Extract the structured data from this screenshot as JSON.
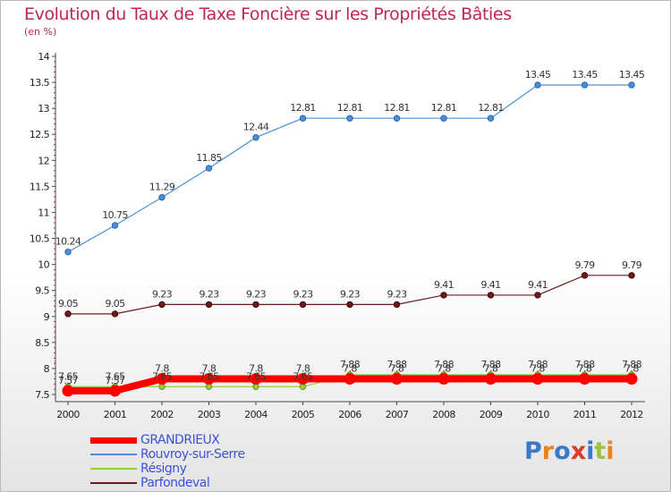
{
  "title": "Evolution du Taux de Taxe Foncière sur les Propriétés Bâties",
  "subtitle": "(en %)",
  "logo": {
    "text": "Proxiti",
    "colors": [
      "#3a78c8",
      "#e8831e",
      "#3a78c8",
      "#d93c2a",
      "#3a78c8",
      "#9bc440",
      "#e8831e"
    ]
  },
  "chart_data": {
    "type": "line",
    "title": "Evolution du Taux de Taxe Foncière sur les Propriétés Bâties",
    "ylabel": "(en %)",
    "xlabel": "",
    "x": [
      "2000",
      "2001",
      "2002",
      "2003",
      "2004",
      "2005",
      "2006",
      "2007",
      "2008",
      "2009",
      "2010",
      "2011",
      "2012"
    ],
    "y_ticks": [
      "7.5",
      "8",
      "8.5",
      "9",
      "9.5",
      "10",
      "10.5",
      "11",
      "11.5",
      "12",
      "12.5",
      "13",
      "13.5",
      "14"
    ],
    "ylim": [
      7.5,
      14
    ],
    "grid": false,
    "legend_position": "bottom-left",
    "series": [
      {
        "name": "GRANDRIEUX",
        "color": "#ff0000",
        "values": [
          7.57,
          7.57,
          7.8,
          7.8,
          7.8,
          7.8,
          7.8,
          7.8,
          7.8,
          7.8,
          7.8,
          7.8,
          7.8
        ],
        "labels": [
          "7.57",
          "7.57",
          "7.8",
          "7.8",
          "7.8",
          "7.8",
          "7.8",
          "7.8",
          "7.8",
          "7.8",
          "7.8",
          "7.8",
          "7.8"
        ]
      },
      {
        "name": "Rouvroy-sur-Serre",
        "color": "#4a90d9",
        "values": [
          10.24,
          10.75,
          11.29,
          11.85,
          12.44,
          12.81,
          12.81,
          12.81,
          12.81,
          12.81,
          13.45,
          13.45,
          13.45
        ],
        "labels": [
          "10.24",
          "10.75",
          "11.29",
          "11.85",
          "12.44",
          "12.81",
          "12.81",
          "12.81",
          "12.81",
          "12.81",
          "13.45",
          "13.45",
          "13.45"
        ]
      },
      {
        "name": "Résigny",
        "color": "#8fd13a",
        "values": [
          7.65,
          7.65,
          7.65,
          7.65,
          7.65,
          7.65,
          7.88,
          7.88,
          7.88,
          7.88,
          7.88,
          7.88,
          7.88
        ],
        "labels": [
          "7.65",
          "7.65",
          "7.65",
          "7.65",
          "7.65",
          "7.65",
          "7.88",
          "7.88",
          "7.88",
          "7.88",
          "7.88",
          "7.88",
          "7.88"
        ]
      },
      {
        "name": "Parfondeval",
        "color": "#6e1a1a",
        "values": [
          9.05,
          9.05,
          9.23,
          9.23,
          9.23,
          9.23,
          9.23,
          9.23,
          9.41,
          9.41,
          9.41,
          9.79,
          9.79
        ],
        "labels": [
          "9.05",
          "9.05",
          "9.23",
          "9.23",
          "9.23",
          "9.23",
          "9.23",
          "9.23",
          "9.41",
          "9.41",
          "9.41",
          "9.79",
          "9.79"
        ]
      }
    ]
  }
}
